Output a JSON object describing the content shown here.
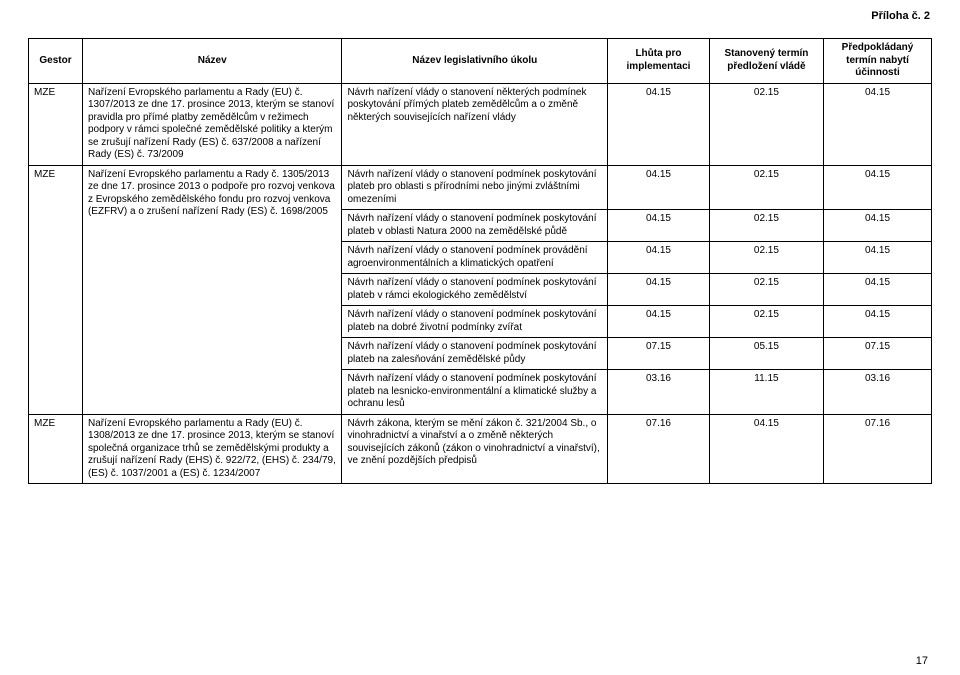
{
  "annex": "Příloha č. 2",
  "page_number": "17",
  "columns": {
    "gestor": "Gestor",
    "nazev": "Název",
    "ukol": "Název legislativního úkolu",
    "lhuta": "Lhůta pro implementaci",
    "termin": "Stanovený termín předložení vládě",
    "ucinnost": "Předpokládaný termín nabytí účinnosti"
  },
  "rows": [
    {
      "gestor": "MZE",
      "nazev": "Nařízení Evropského parlamentu a Rady (EU) č. 1307/2013 ze dne 17. prosince 2013, kterým se stanoví pravidla pro přímé platby zemědělcům v režimech podpory v rámci společné zemědělské politiky a kterým se zrušují nařízení Rady (ES) č. 637/2008 a nařízení Rady (ES) č. 73/2009",
      "tasks": [
        {
          "ukol": "Návrh nařízení vlády o stanovení některých podmínek poskytování přímých plateb zemědělcům a o změně některých souvisejících nařízení vlády",
          "lhuta": "04.15",
          "termin": "02.15",
          "ucin": "04.15"
        }
      ]
    },
    {
      "gestor": "MZE",
      "nazev": "Nařízení Evropského parlamentu a Rady č. 1305/2013 ze dne 17. prosince 2013 o podpoře pro rozvoj venkova z Evropského zemědělského fondu pro rozvoj venkova (EZFRV) a o zrušení nařízení Rady (ES) č. 1698/2005",
      "tasks": [
        {
          "ukol": "Návrh nařízení vlády o stanovení podmínek poskytování plateb pro oblasti s přírodními nebo jinými zvláštními omezeními",
          "lhuta": "04.15",
          "termin": "02.15",
          "ucin": "04.15"
        },
        {
          "ukol": "Návrh nařízení vlády o stanovení podmínek poskytování plateb v oblasti Natura 2000 na zemědělské půdě",
          "lhuta": "04.15",
          "termin": "02.15",
          "ucin": "04.15"
        },
        {
          "ukol": "Návrh nařízení vlády o stanovení podmínek provádění agroenvironmentálních a klimatických opatření",
          "lhuta": "04.15",
          "termin": "02.15",
          "ucin": "04.15"
        },
        {
          "ukol": "Návrh nařízení vlády o stanovení podmínek poskytování plateb v rámci ekologického zemědělství",
          "lhuta": "04.15",
          "termin": "02.15",
          "ucin": "04.15"
        },
        {
          "ukol": "Návrh nařízení vlády o stanovení podmínek poskytování plateb na dobré životní podmínky zvířat",
          "lhuta": "04.15",
          "termin": "02.15",
          "ucin": "04.15"
        },
        {
          "ukol": "Návrh nařízení vlády o stanovení podmínek poskytování plateb na zalesňování zemědělské půdy",
          "lhuta": "07.15",
          "termin": "05.15",
          "ucin": "07.15"
        },
        {
          "ukol": "Návrh nařízení vlády o stanovení podmínek poskytování plateb na lesnicko-environmentální a klimatické služby a ochranu lesů",
          "lhuta": "03.16",
          "termin": "11.15",
          "ucin": "03.16"
        }
      ]
    },
    {
      "gestor": "MZE",
      "nazev": "Nařízení Evropského parlamentu a Rady (EU) č. 1308/2013 ze dne 17. prosince 2013, kterým se stanoví společná organizace trhů se zemědělskými produkty a zrušují nařízení Rady (EHS) č. 922/72, (EHS) č. 234/79, (ES) č. 1037/2001 a (ES) č. 1234/2007",
      "tasks": [
        {
          "ukol": "Návrh zákona, kterým se mění zákon č. 321/2004 Sb., o vinohradnictví a vinařství a o změně některých souvisejících zákonů (zákon o vinohradnictví a vinařství), ve znění pozdějších předpisů",
          "lhuta": "07.16",
          "termin": "04.15",
          "ucin": "07.16"
        }
      ]
    }
  ]
}
